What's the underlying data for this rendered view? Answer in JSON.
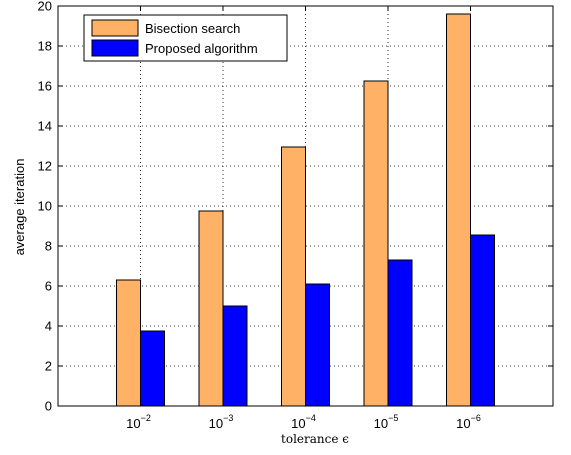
{
  "chart_data": {
    "type": "bar",
    "categories": [
      {
        "base": "10",
        "exp": "−2"
      },
      {
        "base": "10",
        "exp": "−3"
      },
      {
        "base": "10",
        "exp": "−4"
      },
      {
        "base": "10",
        "exp": "−5"
      },
      {
        "base": "10",
        "exp": "−6"
      }
    ],
    "series": [
      {
        "name": "Bisection search",
        "color": "#FFB266",
        "values": [
          6.3,
          9.75,
          12.95,
          16.25,
          19.6
        ]
      },
      {
        "name": "Proposed algorithm",
        "color": "#0000FF",
        "values": [
          3.75,
          5.0,
          6.1,
          7.3,
          8.55
        ]
      }
    ],
    "xlabel": "tolerance ϵ",
    "ylabel": "average iteration",
    "ylim": [
      0,
      20
    ],
    "yticks": [
      "0",
      "2",
      "4",
      "6",
      "8",
      "10",
      "12",
      "14",
      "16",
      "18",
      "20"
    ],
    "grid": true,
    "legend_position": "top-left"
  }
}
